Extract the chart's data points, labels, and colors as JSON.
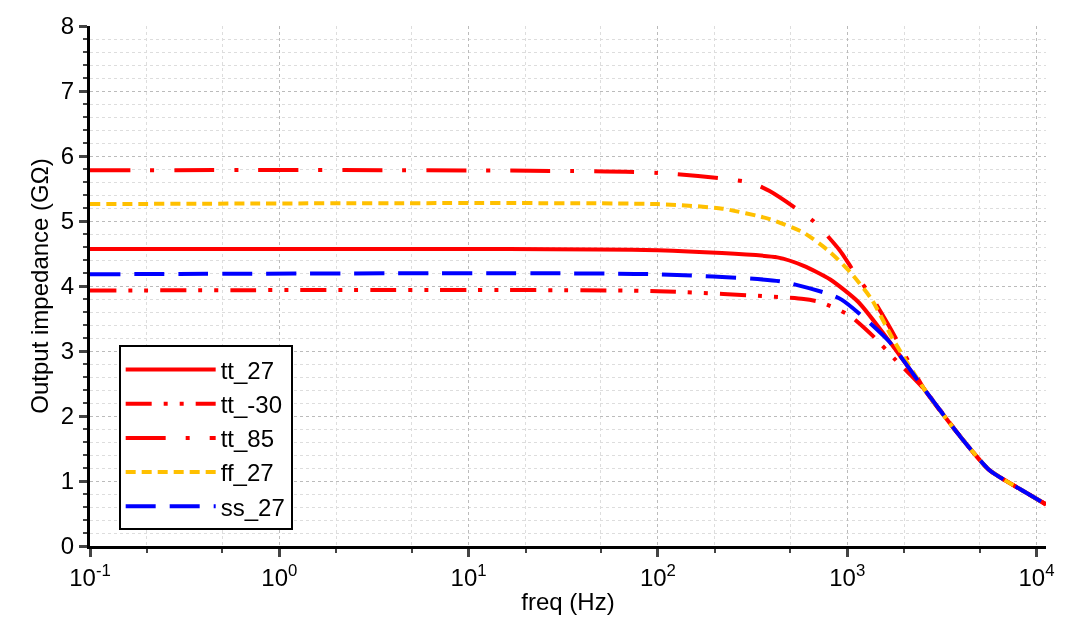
{
  "chart_data": {
    "type": "line",
    "xlabel": "freq (Hz)",
    "ylabel": "Output impedance (GΩ)",
    "log": "x",
    "grid": true,
    "legend": "bottom left",
    "xlim": [
      0.1,
      11220
    ],
    "ylim": [
      0,
      8
    ],
    "xticks": [
      {
        "value": 0.1,
        "label": "10$^{-1}$"
      },
      {
        "value": 1,
        "label": "10$^{0}$"
      },
      {
        "value": 10,
        "label": "10$^{1}$"
      },
      {
        "value": 100,
        "label": "10$^{2}$"
      },
      {
        "value": 1000,
        "label": "10$^{3}$"
      },
      {
        "value": 10000,
        "label": "10$^{4}$"
      }
    ],
    "yticks": [
      0,
      1,
      2,
      3,
      4,
      5,
      6,
      7,
      8
    ],
    "series": [
      {
        "name": "tt_27",
        "color": "#ff0000",
        "line_style": "solid",
        "x": [
          0.1,
          10,
          100,
          427,
          589,
          813,
          1148,
          1738,
          2570,
          3890,
          5623,
          8128,
          11220
        ],
        "values": [
          4.57,
          4.57,
          4.55,
          4.44,
          4.31,
          4.1,
          3.75,
          3.08,
          2.4,
          1.71,
          1.17,
          0.88,
          0.64
        ]
      },
      {
        "name": "tt_-30",
        "color": "#ff0000",
        "line_style": "dashdotdot",
        "x": [
          0.1,
          100,
          589,
          724,
          1023,
          1413,
          1778,
          2570,
          3890,
          5623,
          8128,
          11220
        ],
        "values": [
          3.93,
          3.92,
          3.8,
          3.75,
          3.55,
          3.19,
          2.88,
          2.4,
          1.71,
          1.17,
          0.88,
          0.64
        ]
      },
      {
        "name": "tt_85",
        "color": "#ff0000",
        "line_style": "dashdot",
        "x": [
          0.1,
          100,
          309,
          389,
          661,
          912,
          1096,
          1349,
          1660,
          2570,
          3890,
          5623,
          8128,
          11220
        ],
        "values": [
          5.78,
          5.74,
          5.59,
          5.46,
          5.0,
          4.55,
          4.2,
          3.83,
          3.39,
          2.4,
          1.71,
          1.17,
          0.88,
          0.64
        ]
      },
      {
        "name": "ff_27",
        "color": "#ffc000",
        "line_style": "dotted",
        "x": [
          0.1,
          100,
          219,
          389,
          589,
          813,
          1047,
          1349,
          1738,
          2570,
          3890,
          5623,
          8128,
          11220
        ],
        "values": [
          5.26,
          5.26,
          5.19,
          5.03,
          4.82,
          4.52,
          4.2,
          3.79,
          3.19,
          2.4,
          1.71,
          1.17,
          0.88,
          0.64
        ]
      },
      {
        "name": "ss_27",
        "color": "#0000ff",
        "line_style": "dashed",
        "x": [
          0.1,
          100,
          447,
          813,
          933,
          1175,
          1660,
          2570,
          3890,
          5623,
          8128,
          11220
        ],
        "values": [
          4.18,
          4.18,
          4.07,
          3.87,
          3.79,
          3.56,
          3.15,
          2.4,
          1.71,
          1.17,
          0.88,
          0.64
        ]
      }
    ]
  }
}
